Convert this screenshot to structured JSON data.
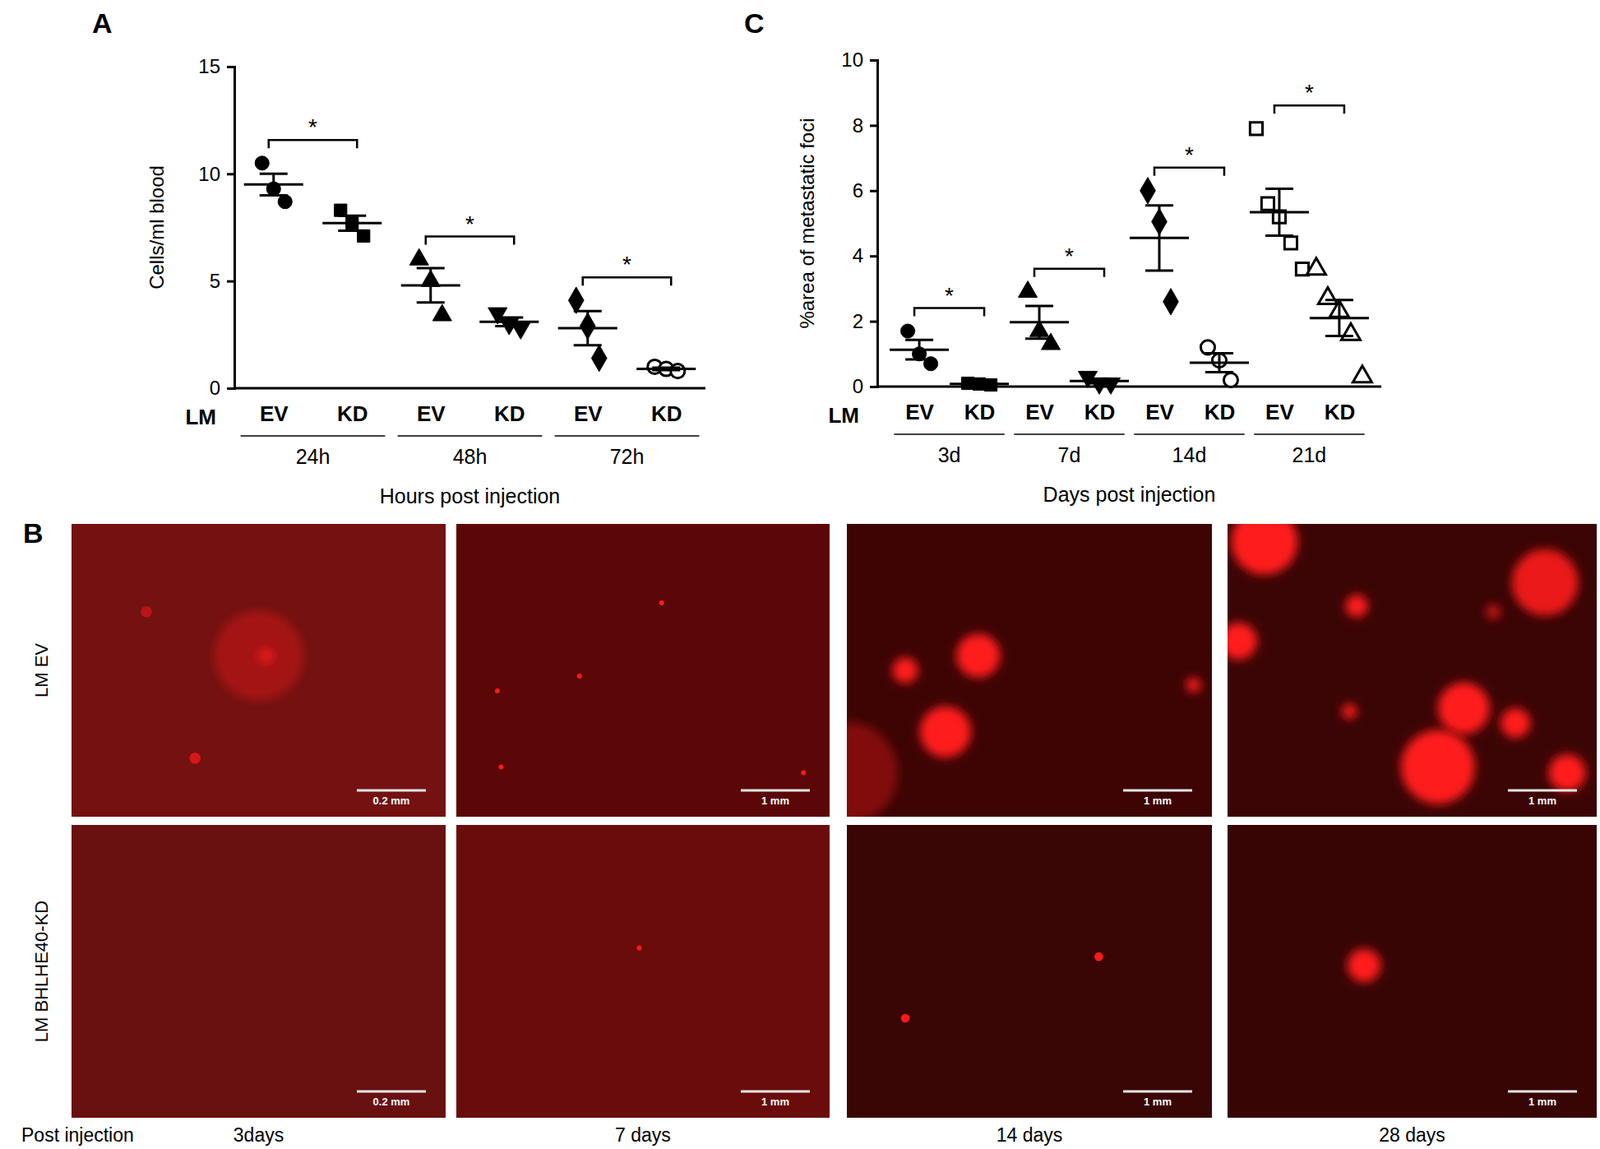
{
  "chart_data": [
    {
      "type": "scatter",
      "title": "A",
      "y_label": "Cells/ml blood",
      "x_label": "Hours post injection",
      "axis_prefix": "LM",
      "categories": [
        "EV",
        "KD",
        "EV",
        "KD",
        "EV",
        "KD"
      ],
      "groups": [
        "24h",
        "48h",
        "72h"
      ],
      "points": [
        [
          10.5,
          9.3,
          8.7
        ],
        [
          8.3,
          7.7,
          7.1
        ],
        [
          6.0,
          5.0,
          3.4
        ],
        [
          3.5,
          3.0,
          2.8
        ],
        [
          4.1,
          2.9,
          1.4
        ],
        [
          1.0,
          0.9,
          0.8
        ]
      ],
      "means": [
        9.5,
        7.7,
        4.8,
        3.1,
        2.8,
        0.9
      ],
      "sem": [
        0.5,
        0.35,
        0.8,
        0.2,
        0.8,
        0.06
      ],
      "markers": [
        "circle",
        "square",
        "triangle",
        "triangle-down",
        "diamond",
        "circle-open"
      ],
      "color": "#000000",
      "ylim": [
        0,
        15
      ],
      "yticks": [
        0,
        5,
        10,
        15
      ],
      "annotations": [
        {
          "from": 0,
          "to": 1,
          "text": "*"
        },
        {
          "from": 2,
          "to": 3,
          "text": "*"
        },
        {
          "from": 4,
          "to": 5,
          "text": "*"
        }
      ]
    },
    {
      "type": "scatter",
      "title": "C",
      "y_label": "%area of metastatic foci",
      "x_label": "Days post injection",
      "axis_prefix": "LM",
      "categories": [
        "EV",
        "KD",
        "EV",
        "KD",
        "EV",
        "KD",
        "EV",
        "KD"
      ],
      "groups": [
        "3d",
        "7d",
        "14d",
        "21d"
      ],
      "points": [
        [
          1.7,
          1.0,
          0.7
        ],
        [
          0.1,
          0.08,
          0.05
        ],
        [
          2.9,
          1.7,
          1.3
        ],
        [
          0.3,
          0.1,
          0.1
        ],
        [
          6.0,
          5.05,
          2.6
        ],
        [
          1.2,
          0.8,
          0.2
        ],
        [
          7.9,
          5.6,
          5.2,
          4.4,
          3.6
        ],
        [
          3.6,
          2.7,
          2.3,
          1.6,
          0.3
        ]
      ],
      "means": [
        1.13,
        0.08,
        1.97,
        0.17,
        4.55,
        0.73,
        5.34,
        2.1
      ],
      "sem": [
        0.3,
        0.02,
        0.5,
        0.07,
        1.0,
        0.29,
        0.72,
        0.55
      ],
      "markers": [
        "circle",
        "square",
        "triangle",
        "triangle-down",
        "diamond",
        "circle-open",
        "square-open",
        "triangle-open"
      ],
      "color": "#000000",
      "ylim": [
        0,
        10
      ],
      "yticks": [
        0,
        2,
        4,
        6,
        8,
        10
      ],
      "annotations": [
        {
          "from": 0,
          "to": 1,
          "text": "*"
        },
        {
          "from": 2,
          "to": 3,
          "text": "*"
        },
        {
          "from": 4,
          "to": 5,
          "text": "*"
        },
        {
          "from": 6,
          "to": 7,
          "text": "*"
        }
      ]
    }
  ],
  "images": {
    "title": "B",
    "row_labels": [
      "LM EV",
      "LM BHLHE40-KD"
    ],
    "axis_label": "Post injection",
    "column_labels": [
      "3days",
      "7 days",
      "14 days",
      "28 days"
    ],
    "scale_bars": [
      [
        "0.2 mm",
        "1 mm",
        "1 mm",
        "1 mm"
      ],
      [
        "0.2 mm",
        "1 mm",
        "1 mm",
        "1 mm"
      ]
    ]
  }
}
